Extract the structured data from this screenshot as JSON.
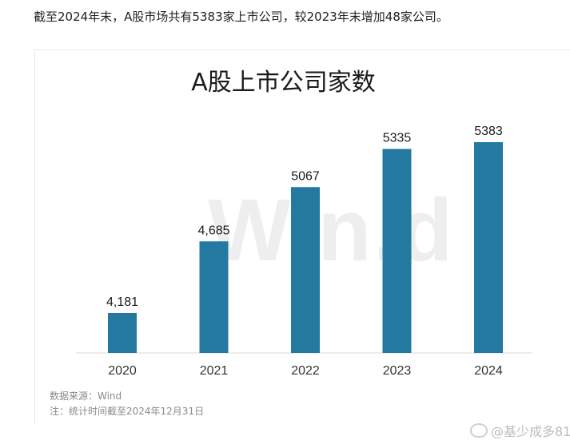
{
  "intro_text": "截至2024年末，A股市场共有5383家上市公司，较2023年末增加48家公司。",
  "watermark": "Win.d",
  "source_text": "数据来源：Wind",
  "note_text": "注：统计时间截至2024年12月31日",
  "signature_text": "@基少成多81",
  "colors": {
    "bar": "#2379a0",
    "axis": "#d9d9d9",
    "label": "#1a1a1a"
  },
  "chart_data": {
    "type": "bar",
    "title": "A股上市公司家数",
    "categories": [
      "2020",
      "2021",
      "2022",
      "2023",
      "2024"
    ],
    "values": [
      4181,
      4685,
      5067,
      5335,
      5383
    ],
    "data_labels": [
      "4,181",
      "4,685",
      "5067",
      "5335",
      "5383"
    ],
    "xlabel": "",
    "ylabel": "",
    "grid": false,
    "legend": "none"
  }
}
